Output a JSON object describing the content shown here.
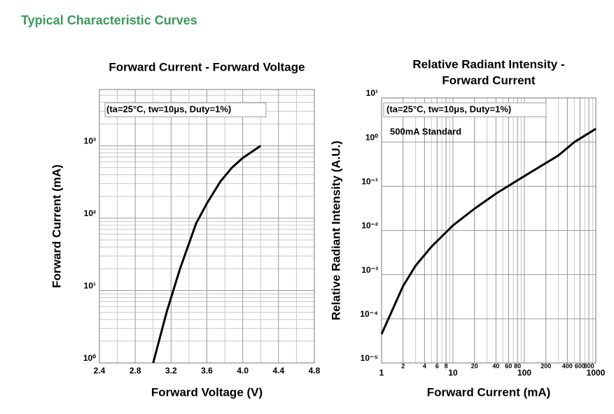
{
  "header": {
    "title": "Typical Characteristic Curves"
  },
  "chart_data": [
    {
      "type": "line",
      "title": [
        "Forward Current - Forward Voltage"
      ],
      "xlabel": "Forward Voltage (V)",
      "ylabel": "Forward Current (mA)",
      "annotations": [
        "(ta=25°C, tw=10μs, Duty=1%)"
      ],
      "x": [
        3.0,
        3.15,
        3.3,
        3.48,
        3.6,
        3.75,
        3.88,
        4.0,
        4.2
      ],
      "values": [
        1,
        5,
        20,
        85,
        160,
        320,
        500,
        680,
        1000
      ],
      "color": "#000000",
      "xscale": "linear",
      "yscale": "log",
      "grid": true,
      "xlim": [
        2.4,
        4.8
      ],
      "xticks": [
        2.4,
        2.8,
        3.2,
        3.6,
        {
          "value": 4,
          "label": "4.0"
        },
        4.4,
        4.8
      ],
      "ylim": [
        1,
        6000
      ],
      "yticks": [
        {
          "value": 1,
          "label": "10⁰"
        },
        {
          "value": 10,
          "label": "10¹"
        },
        {
          "value": 100,
          "label": "10²"
        },
        {
          "value": 1000,
          "label": "10³"
        }
      ]
    },
    {
      "type": "line",
      "title": [
        "Relative Radiant Intensity -",
        "Forward Current"
      ],
      "xlabel": "Forward Current (mA)",
      "ylabel": "Relative Radiant Intensity (A.U.)",
      "annotations": [
        "(ta=25°C, tw=10μs, Duty=1%)",
        "500mA Standard"
      ],
      "x": [
        1,
        2,
        3,
        5,
        10,
        20,
        40,
        100,
        300,
        500,
        1000
      ],
      "values": [
        4.5e-05,
        0.00055,
        0.0016,
        0.0043,
        0.013,
        0.031,
        0.068,
        0.17,
        0.5,
        1,
        2
      ],
      "color": "#000000",
      "xscale": "log",
      "yscale": "log",
      "grid": true,
      "xlim": [
        1,
        1000
      ],
      "xticks": [
        1,
        2,
        4,
        6,
        8,
        10,
        20,
        40,
        60,
        80,
        100,
        200,
        400,
        600,
        800,
        1000
      ],
      "ylim": [
        1e-05,
        10
      ],
      "yticks": [
        {
          "value": 1e-05,
          "label": "10⁻⁵"
        },
        {
          "value": 0.0001,
          "label": "10⁻⁴"
        },
        {
          "value": 0.001,
          "label": "10⁻³"
        },
        {
          "value": 0.01,
          "label": "10⁻²"
        },
        {
          "value": 0.1,
          "label": "10⁻¹"
        },
        {
          "value": 1,
          "label": "10⁰"
        },
        {
          "value": 10,
          "label": "10¹"
        }
      ]
    }
  ]
}
